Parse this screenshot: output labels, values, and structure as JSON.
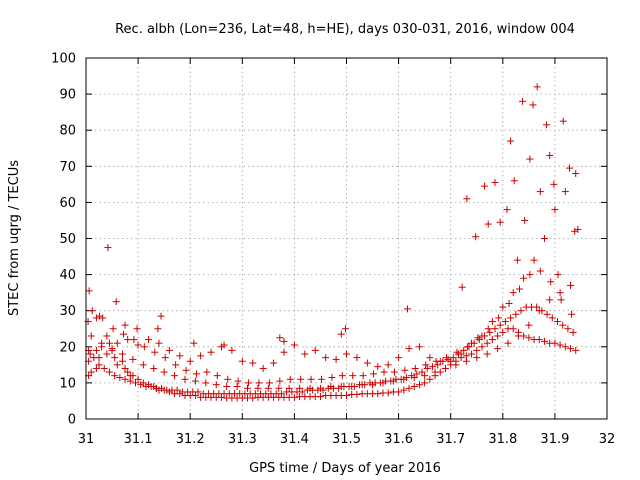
{
  "chart_data": {
    "type": "scatter",
    "title": "Rec. albh (Lon=236, Lat=48, h=HE), days 030-031, 2016, window 004",
    "xlabel": "GPS time / Days of year 2016",
    "ylabel": "STEC from uqrg / TECUs",
    "xlim": [
      31,
      32
    ],
    "ylim": [
      0,
      100
    ],
    "xticks": [
      "31",
      "31.1",
      "31.2",
      "31.3",
      "31.4",
      "31.5",
      "31.6",
      "31.7",
      "31.8",
      "31.9",
      "32"
    ],
    "yticks": [
      "0",
      "10",
      "20",
      "30",
      "40",
      "50",
      "60",
      "70",
      "80",
      "90",
      "100"
    ],
    "grid": true,
    "marker": "plus",
    "color": "#cc0000",
    "series": [
      {
        "x": [
          31.005,
          31.005,
          31.01,
          31.008,
          31.02,
          31.025,
          31.03,
          31.02,
          31.04,
          31.045,
          31.05,
          31.055,
          31.06,
          31.07,
          31.075,
          31.08,
          31.085,
          31.09,
          31.1,
          31.11,
          31.12,
          31.13,
          31.135,
          31.14,
          31.15,
          31.16,
          31.17,
          31.18,
          31.19,
          31.2,
          31.21,
          31.22,
          31.23,
          31.24,
          31.25,
          31.26,
          31.27,
          31.28,
          31.29,
          31.3,
          31.31,
          31.32,
          31.33,
          31.34,
          31.35,
          31.36,
          31.37,
          31.38,
          31.39,
          31.4,
          31.41,
          31.42,
          31.43,
          31.44,
          31.45,
          31.46,
          31.47,
          31.48,
          31.49,
          31.5,
          31.51,
          31.52,
          31.53,
          31.54,
          31.55,
          31.56,
          31.57,
          31.58,
          31.59,
          31.6,
          31.61,
          31.62,
          31.63,
          31.64,
          31.65,
          31.66,
          31.67,
          31.68,
          31.69,
          31.7,
          31.71,
          31.72,
          31.73,
          31.74,
          31.75,
          31.76,
          31.77,
          31.78,
          31.79,
          31.8,
          31.81,
          31.82,
          31.83,
          31.84,
          31.85,
          31.86,
          31.87,
          31.88,
          31.89,
          31.9,
          31.91,
          31.92,
          31.93,
          31.94
        ],
        "y": [
          12,
          16,
          13,
          18,
          14,
          17,
          20,
          19,
          18,
          21,
          19,
          17,
          15,
          16,
          14,
          13,
          12,
          12,
          11,
          10,
          9.5,
          9,
          8.5,
          8,
          8,
          7.5,
          7,
          7,
          6.5,
          6.5,
          6.5,
          6,
          6,
          6,
          6,
          6,
          5.8,
          5.8,
          5.8,
          5.8,
          5.8,
          5.8,
          6,
          6,
          6,
          6,
          6,
          6,
          6,
          6,
          6.2,
          6.2,
          6.2,
          6.2,
          6.2,
          6.5,
          6.5,
          6.5,
          6.5,
          6.5,
          6.8,
          6.8,
          7,
          7,
          7,
          7,
          7.2,
          7.2,
          7.5,
          7.5,
          8,
          8.5,
          9,
          9.5,
          10,
          11,
          12,
          13,
          14,
          15,
          16,
          17,
          17.5,
          18,
          19,
          20,
          21,
          22,
          23,
          24,
          25,
          25,
          24,
          23,
          22.5,
          22,
          22,
          21.5,
          21,
          21,
          20.5,
          20,
          19.5,
          19
        ]
      },
      {
        "x": [
          31.005,
          31.015,
          31.025,
          31.035,
          31.045,
          31.055,
          31.065,
          31.075,
          31.085,
          31.095,
          31.105,
          31.115,
          31.125,
          31.135,
          31.145,
          31.155,
          31.165,
          31.175,
          31.185,
          31.195,
          31.205,
          31.215,
          31.225,
          31.235,
          31.245,
          31.255,
          31.265,
          31.275,
          31.285,
          31.295,
          31.305,
          31.315,
          31.325,
          31.335,
          31.345,
          31.355,
          31.365,
          31.375,
          31.385,
          31.395,
          31.405,
          31.415,
          31.425,
          31.435,
          31.445,
          31.455,
          31.465,
          31.475,
          31.485,
          31.495,
          31.505,
          31.515,
          31.525,
          31.535,
          31.545,
          31.555,
          31.565,
          31.575,
          31.585,
          31.595,
          31.605,
          31.615,
          31.625,
          31.635,
          31.645,
          31.655,
          31.665,
          31.675,
          31.685,
          31.695,
          31.705,
          31.715,
          31.725,
          31.735,
          31.745,
          31.755,
          31.765,
          31.775,
          31.785,
          31.795,
          31.805,
          31.815,
          31.825,
          31.835,
          31.845,
          31.855,
          31.865,
          31.875,
          31.885,
          31.895,
          31.905,
          31.915,
          31.925,
          31.935
        ],
        "y": [
          19,
          17,
          15,
          14,
          13,
          12,
          11.5,
          11,
          10.5,
          10,
          9.5,
          9,
          9,
          8.5,
          8.5,
          8,
          8,
          8,
          7.5,
          7.5,
          7.5,
          7.5,
          7,
          7,
          7,
          7,
          7,
          7,
          7,
          7,
          7,
          7,
          7,
          7,
          7,
          7,
          7,
          7,
          7.5,
          7.5,
          7.5,
          7.5,
          8,
          8,
          8,
          8,
          8.5,
          8.5,
          8.5,
          9,
          9,
          9,
          9.5,
          9.5,
          10,
          10,
          10,
          10.5,
          10.5,
          11,
          11,
          11.5,
          12,
          12.5,
          13,
          14,
          14.5,
          15,
          16,
          16.5,
          17,
          18,
          19,
          20,
          21,
          22,
          23,
          24,
          25,
          26,
          27,
          28,
          29,
          30,
          31,
          31,
          31,
          30,
          29,
          28,
          27,
          26,
          25,
          24
        ]
      },
      {
        "x": [
          31.01,
          31.03,
          31.05,
          31.07,
          31.09,
          31.11,
          31.13,
          31.15,
          31.17,
          31.19,
          31.21,
          31.23,
          31.25,
          31.27,
          31.29,
          31.31,
          31.33,
          31.35,
          31.37,
          31.39,
          31.41,
          31.43,
          31.45,
          31.47,
          31.49,
          31.51,
          31.53,
          31.55,
          31.57,
          31.59,
          31.61,
          31.63,
          31.65,
          31.67,
          31.69,
          31.71,
          31.73,
          31.75,
          31.77,
          31.79,
          31.81,
          31.83,
          31.85,
          31.87,
          31.89,
          31.91,
          31.93
        ],
        "y": [
          23,
          21,
          19.5,
          18,
          16.5,
          15,
          14,
          13,
          12,
          11,
          10.5,
          10,
          9.5,
          9,
          9,
          8.5,
          8.5,
          8.5,
          8.5,
          8.5,
          8.5,
          8.5,
          8.5,
          9,
          9,
          9,
          9.5,
          9.5,
          10,
          10.5,
          11,
          11.5,
          12,
          13,
          14,
          15,
          16,
          17,
          18,
          19.5,
          21,
          23,
          26,
          30,
          33,
          35,
          37
        ]
      },
      {
        "x": [
          31.004,
          31.02,
          31.04,
          31.06,
          31.08,
          31.1,
          31.12,
          31.14,
          31.16,
          31.18,
          31.2,
          31.22,
          31.24,
          31.26,
          31.28,
          31.3,
          31.32,
          31.34,
          31.36,
          31.38,
          31.4,
          31.42,
          31.44,
          31.46,
          31.48,
          31.5,
          31.52,
          31.54,
          31.56,
          31.58,
          31.6,
          31.62,
          31.64,
          31.66,
          31.68,
          31.7,
          31.72,
          31.74,
          31.76,
          31.78,
          31.8,
          31.82,
          31.84,
          31.86,
          31.88,
          31.9,
          31.92,
          31.94
        ],
        "y": [
          27,
          28,
          23,
          21,
          22,
          20.5,
          22,
          21,
          19,
          17.5,
          16,
          17.5,
          18.5,
          20,
          19,
          16,
          15.5,
          14,
          15.5,
          18.5,
          20.5,
          18,
          19,
          17,
          16.5,
          18,
          17,
          15.5,
          14.5,
          15,
          17,
          19.5,
          20,
          17,
          16,
          16,
          18,
          21,
          23,
          27,
          31,
          35,
          39,
          44,
          50,
          58,
          63,
          68
        ]
      },
      {
        "x": [
          31.012,
          31.032,
          31.052,
          31.072,
          31.092,
          31.112,
          31.132,
          31.152,
          31.172,
          31.192,
          31.212,
          31.232,
          31.252,
          31.272,
          31.292,
          31.312,
          31.332,
          31.352,
          31.372,
          31.392,
          31.412,
          31.432,
          31.452,
          31.472,
          31.492,
          31.512,
          31.532,
          31.552,
          31.572,
          31.592,
          31.612,
          31.632,
          31.652,
          31.672,
          31.692,
          31.712,
          31.732,
          31.752,
          31.772,
          31.792,
          31.812,
          31.832,
          31.852,
          31.872,
          31.892,
          31.912,
          31.932
        ],
        "y": [
          30,
          28,
          25,
          23.5,
          22,
          20,
          18.5,
          17,
          15,
          13.5,
          12.5,
          13,
          12,
          11,
          10.5,
          10,
          10,
          10,
          10.5,
          11,
          11,
          11,
          11,
          11.5,
          12,
          12,
          12,
          12.5,
          13,
          13,
          13.5,
          14,
          15,
          16,
          17,
          18.5,
          20,
          22.5,
          25,
          28,
          32,
          36,
          40,
          41,
          38,
          33,
          29
        ]
      },
      {
        "x": [
          31.006,
          31.026,
          31.042,
          31.058,
          31.075,
          31.098,
          31.138,
          31.144,
          31.207,
          31.265,
          31.372,
          31.38,
          31.49,
          31.498,
          31.617,
          31.722,
          31.731,
          31.748,
          31.765,
          31.772,
          31.785,
          31.795,
          31.808,
          31.815,
          31.822,
          31.828,
          31.838,
          31.842,
          31.852,
          31.858,
          31.866,
          31.872,
          31.884,
          31.89,
          31.898,
          31.906,
          31.916,
          31.928,
          31.938,
          31.944
        ],
        "y": [
          35.5,
          28.5,
          47.5,
          32.5,
          26,
          25,
          25,
          28.5,
          21,
          20.5,
          22.5,
          21.5,
          23.5,
          25,
          30.5,
          36.5,
          61,
          50.5,
          64.5,
          54,
          65.5,
          54.5,
          58,
          77,
          66,
          44,
          88,
          55,
          72,
          87,
          92,
          63,
          81.5,
          73,
          65,
          40,
          82.5,
          69.5,
          52,
          52.5
        ]
      }
    ]
  }
}
